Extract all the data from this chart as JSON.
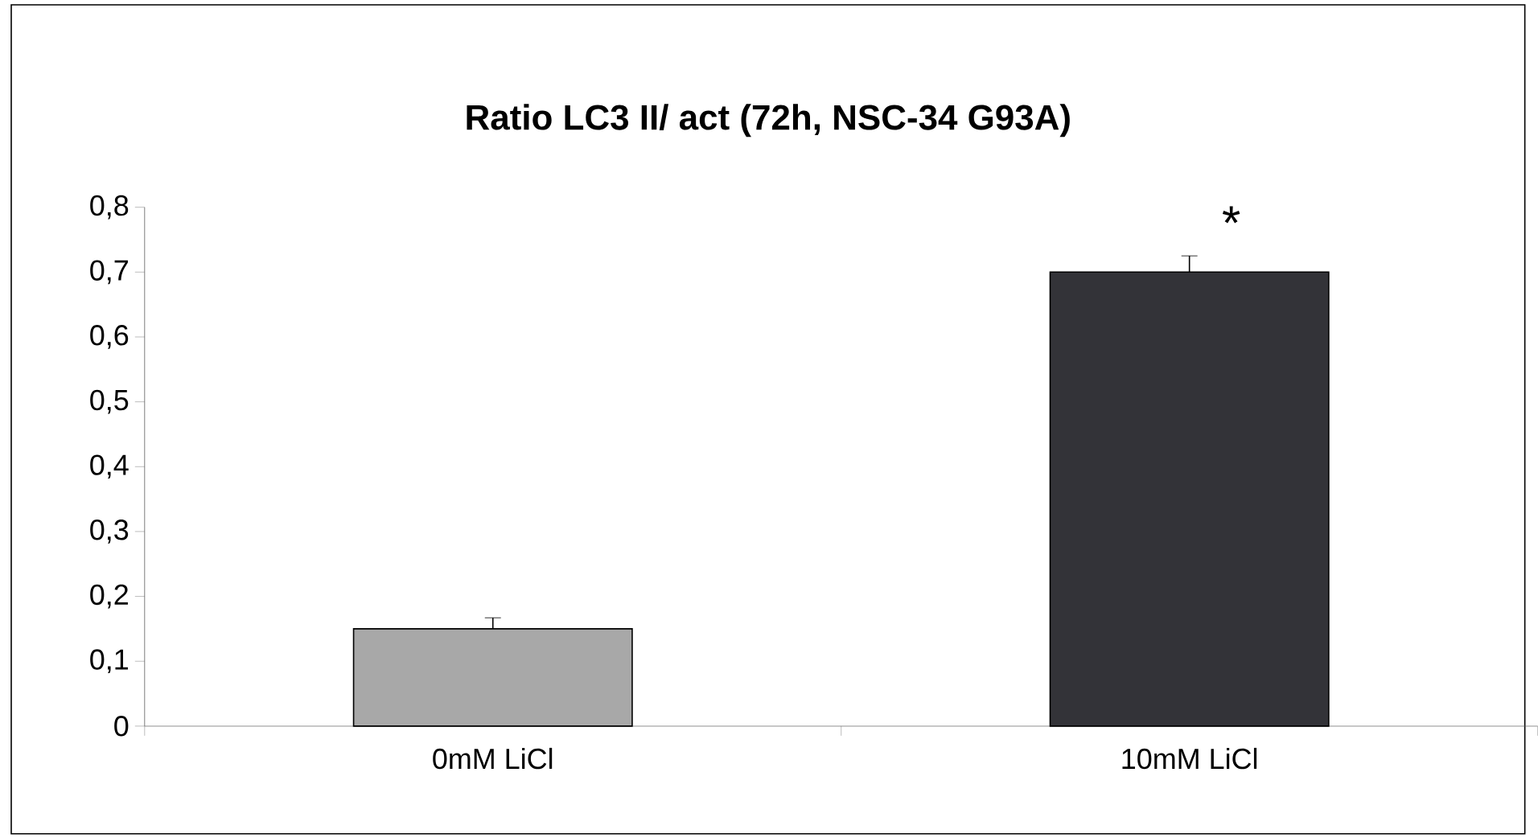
{
  "chart_data": {
    "type": "bar",
    "title": "Ratio LC3 II/ act  (72h, NSC-34 G93A)",
    "categories": [
      "0mM LiCl",
      "10mM LiCl"
    ],
    "values": [
      0.15,
      0.7
    ],
    "errors": [
      0.017,
      0.025
    ],
    "colors": [
      "#a8a8a8",
      "#333338"
    ],
    "ylim": [
      0,
      0.8
    ],
    "yticks": [
      0,
      {
        "value": 0.1,
        "label": "0,1"
      },
      {
        "value": 0.2,
        "label": "0,2"
      },
      {
        "value": 0.3,
        "label": "0,3"
      },
      {
        "value": 0.4,
        "label": "0,4"
      },
      {
        "value": 0.5,
        "label": "0,5"
      },
      {
        "value": 0.6,
        "label": "0,6"
      },
      {
        "value": 0.7,
        "label": "0,7"
      },
      {
        "value": 0.8,
        "label": "0,8"
      }
    ],
    "annotations": [
      "*"
    ]
  }
}
